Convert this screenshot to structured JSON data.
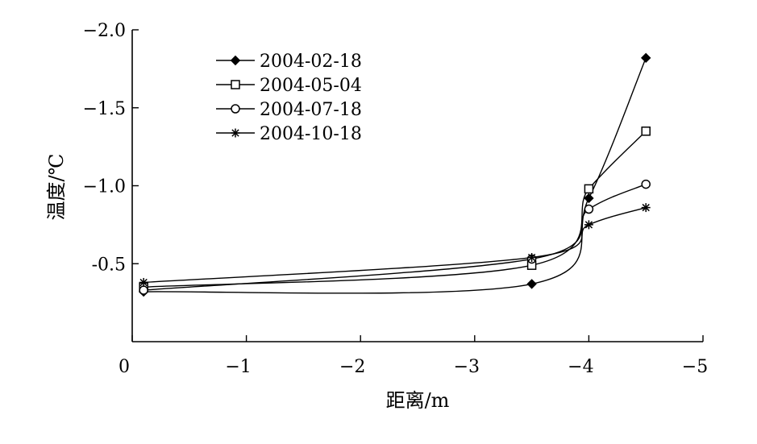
{
  "chart_data": {
    "type": "line",
    "xlabel": "距离/m",
    "ylabel": "温度/℃",
    "xlim": [
      0,
      -5
    ],
    "ylim": [
      0,
      -2.0
    ],
    "x_ticks": [
      0,
      -1,
      -2,
      -3,
      -4,
      -5
    ],
    "x_tick_labels": [
      "0",
      "−1",
      "−2",
      "−3",
      "−4",
      "−5"
    ],
    "y_ticks": [
      -0.5,
      -1.0,
      -1.5,
      -2.0
    ],
    "y_tick_labels": [
      "-0.5",
      "−1.0",
      "−1.5",
      "−2.0"
    ],
    "grid": false,
    "legend_position": "top-left",
    "series": [
      {
        "name": "2004-02-18",
        "marker": "filled-diamond",
        "x": [
          -0.1,
          -3.5,
          -4.0,
          -4.5
        ],
        "y": [
          -0.32,
          -0.37,
          -0.92,
          -1.82
        ]
      },
      {
        "name": "2004-05-04",
        "marker": "open-square",
        "x": [
          -0.1,
          -3.5,
          -4.0,
          -4.5
        ],
        "y": [
          -0.35,
          -0.49,
          -0.98,
          -1.35
        ]
      },
      {
        "name": "2004-07-18",
        "marker": "open-circle",
        "x": [
          -0.1,
          -3.5,
          -4.0,
          -4.5
        ],
        "y": [
          -0.33,
          -0.53,
          -0.85,
          -1.01
        ]
      },
      {
        "name": "2004-10-18",
        "marker": "asterisk",
        "x": [
          -0.1,
          -3.5,
          -4.0,
          -4.5
        ],
        "y": [
          -0.38,
          -0.54,
          -0.75,
          -0.86
        ]
      }
    ]
  }
}
